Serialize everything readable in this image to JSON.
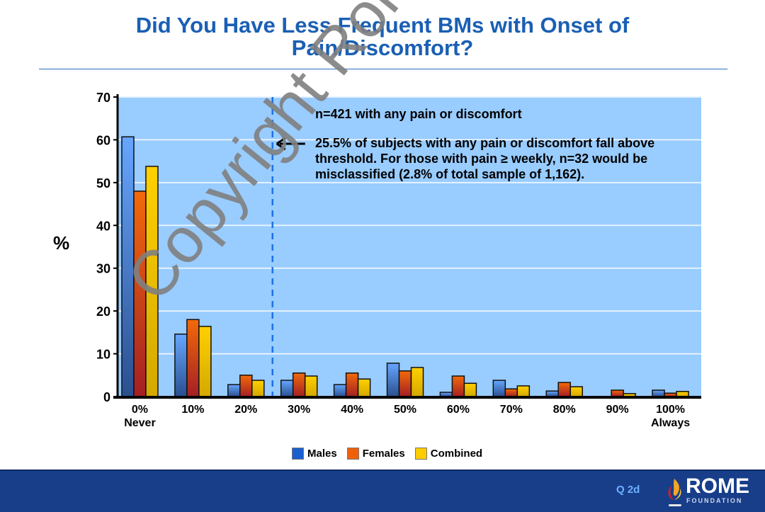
{
  "slide": {
    "title_line1": "Did You Have Less Frequent BMs with Onset of",
    "title_line2": "Pain/Discomfort?",
    "footer_label": "Q 2d",
    "logo_name": "ROME",
    "logo_sub": "FOUNDATION",
    "watermark": "Copyright Rome Foundation"
  },
  "chart_data": {
    "type": "bar",
    "title": "Did You Have Less Frequent BMs with Onset of Pain/Discomfort?",
    "xlabel": "",
    "ylabel": "%",
    "ylim": [
      0,
      70
    ],
    "yticks": [
      0,
      10,
      20,
      30,
      40,
      50,
      60,
      70
    ],
    "grid": true,
    "legend_position": "bottom",
    "categories": [
      "0%",
      "10%",
      "20%",
      "30%",
      "40%",
      "50%",
      "60%",
      "70%",
      "80%",
      "90%",
      "100%"
    ],
    "category_sublabels": [
      "Never",
      "",
      "",
      "",
      "",
      "",
      "",
      "",
      "",
      "",
      "Always"
    ],
    "series": [
      {
        "name": "Males",
        "color": "#2f6fd6",
        "values": [
          60.7,
          14.6,
          2.8,
          3.8,
          2.8,
          7.8,
          1.0,
          3.8,
          1.3,
          0,
          1.5
        ]
      },
      {
        "name": "Females",
        "color": "#f0600a",
        "values": [
          48.0,
          18.0,
          5.0,
          5.5,
          5.5,
          6.0,
          4.8,
          1.8,
          3.3,
          1.5,
          0.8
        ]
      },
      {
        "name": "Combined",
        "color": "#ffcc00",
        "values": [
          53.8,
          16.4,
          3.8,
          4.8,
          4.1,
          6.8,
          3.1,
          2.5,
          2.3,
          0.7,
          1.2
        ]
      }
    ],
    "threshold_between": [
      "20%",
      "30%"
    ],
    "annotations": [
      "n=421 with any pain or discomfort",
      "25.5% of subjects with any pain or discomfort fall above threshold. For those with pain ≥ weekly, n=32 would be misclassified (2.8% of total sample of 1,162)."
    ]
  }
}
